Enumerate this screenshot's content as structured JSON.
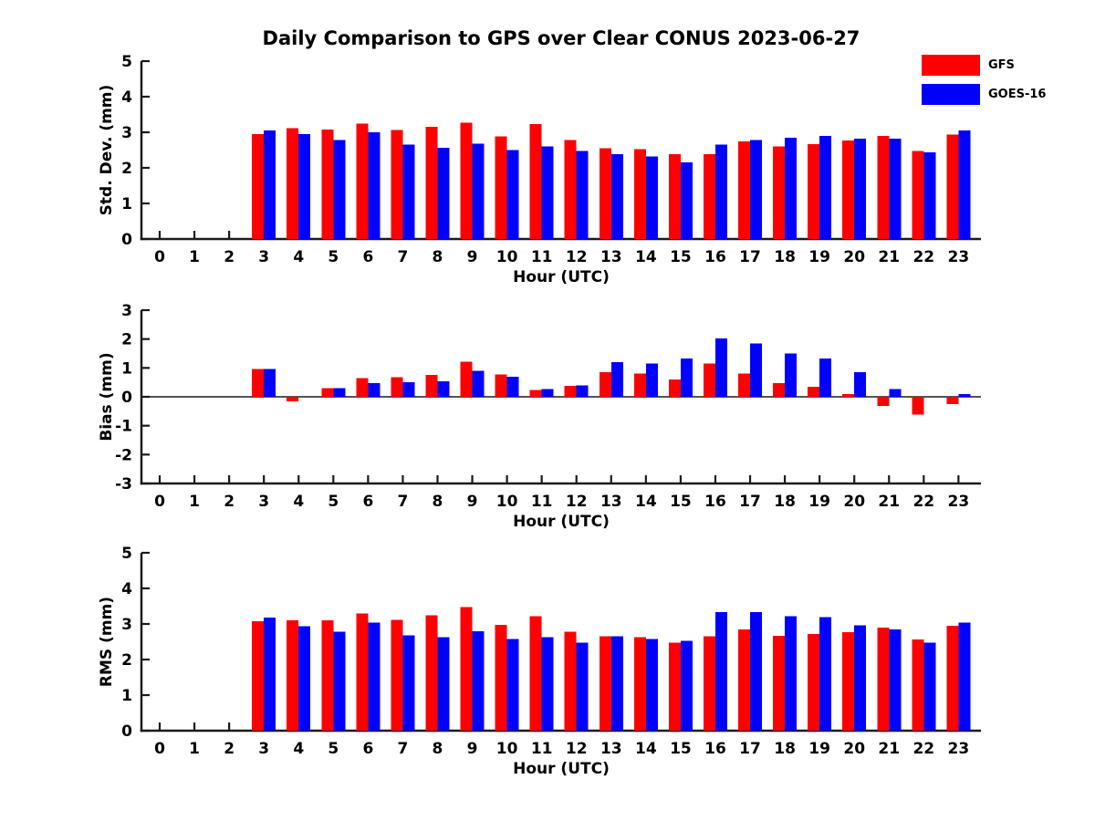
{
  "title": "Daily Comparison to GPS over Clear CONUS 2023-06-27",
  "legend": {
    "position": "top-right",
    "items": [
      {
        "label": "GFS",
        "color": "#ff0000"
      },
      {
        "label": "GOES-16",
        "color": "#0000ff"
      }
    ]
  },
  "chart_data": [
    {
      "type": "bar",
      "title": "Daily Comparison to GPS over Clear CONUS 2023-06-27",
      "xlabel": "Hour (UTC)",
      "ylabel": "Std. Dev. (mm)",
      "ylim": [
        0,
        5
      ],
      "yticks": [
        0,
        1,
        2,
        3,
        4,
        5
      ],
      "grid": false,
      "categories": [
        "0",
        "1",
        "2",
        "3",
        "4",
        "5",
        "6",
        "7",
        "8",
        "9",
        "10",
        "11",
        "12",
        "13",
        "14",
        "15",
        "16",
        "17",
        "18",
        "19",
        "20",
        "21",
        "22",
        "23"
      ],
      "series": [
        {
          "name": "GFS",
          "color": "#ff0000",
          "values": [
            null,
            null,
            null,
            2.95,
            3.12,
            3.08,
            3.24,
            3.06,
            3.16,
            3.27,
            2.88,
            3.23,
            2.78,
            2.55,
            2.52,
            2.38,
            2.38,
            2.75,
            2.6,
            2.67,
            2.77,
            2.9,
            2.48,
            2.93
          ]
        },
        {
          "name": "GOES-16",
          "color": "#0000ff",
          "values": [
            null,
            null,
            null,
            3.05,
            2.95,
            2.78,
            3.0,
            2.65,
            2.57,
            2.68,
            2.5,
            2.6,
            2.47,
            2.38,
            2.32,
            2.15,
            2.65,
            2.78,
            2.85,
            2.9,
            2.82,
            2.82,
            2.44,
            3.05
          ]
        }
      ]
    },
    {
      "type": "bar",
      "title": "",
      "xlabel": "Hour (UTC)",
      "ylabel": "Bias (mm)",
      "ylim": [
        -3,
        3
      ],
      "yticks": [
        -3,
        -2,
        -1,
        0,
        1,
        2,
        3
      ],
      "zero_line": true,
      "grid": false,
      "categories": [
        "0",
        "1",
        "2",
        "3",
        "4",
        "5",
        "6",
        "7",
        "8",
        "9",
        "10",
        "11",
        "12",
        "13",
        "14",
        "15",
        "16",
        "17",
        "18",
        "19",
        "20",
        "21",
        "22",
        "23"
      ],
      "series": [
        {
          "name": "GFS",
          "color": "#ff0000",
          "values": [
            null,
            null,
            null,
            0.97,
            -0.15,
            0.3,
            0.65,
            0.68,
            0.76,
            1.22,
            0.78,
            0.23,
            0.38,
            0.86,
            0.81,
            0.6,
            1.15,
            0.8,
            0.47,
            0.35,
            0.1,
            -0.32,
            -0.62,
            -0.25
          ]
        },
        {
          "name": "GOES-16",
          "color": "#0000ff",
          "values": [
            null,
            null,
            null,
            0.97,
            0,
            0.3,
            0.48,
            0.5,
            0.53,
            0.9,
            0.7,
            0.27,
            0.4,
            1.2,
            1.16,
            1.32,
            2.02,
            1.85,
            1.5,
            1.32,
            0.85,
            0.27,
            0,
            0.1
          ]
        }
      ]
    },
    {
      "type": "bar",
      "title": "",
      "xlabel": "Hour (UTC)",
      "ylabel": "RMS (mm)",
      "ylim": [
        0,
        5
      ],
      "yticks": [
        0,
        1,
        2,
        3,
        4,
        5
      ],
      "grid": false,
      "categories": [
        "0",
        "1",
        "2",
        "3",
        "4",
        "5",
        "6",
        "7",
        "8",
        "9",
        "10",
        "11",
        "12",
        "13",
        "14",
        "15",
        "16",
        "17",
        "18",
        "19",
        "20",
        "21",
        "22",
        "23"
      ],
      "series": [
        {
          "name": "GFS",
          "color": "#ff0000",
          "values": [
            null,
            null,
            null,
            3.08,
            3.1,
            3.1,
            3.3,
            3.12,
            3.25,
            3.47,
            2.97,
            3.22,
            2.78,
            2.65,
            2.63,
            2.48,
            2.65,
            2.85,
            2.67,
            2.72,
            2.77,
            2.9,
            2.56,
            2.95
          ]
        },
        {
          "name": "GOES-16",
          "color": "#0000ff",
          "values": [
            null,
            null,
            null,
            3.18,
            2.94,
            2.78,
            3.04,
            2.68,
            2.63,
            2.8,
            2.58,
            2.63,
            2.47,
            2.66,
            2.58,
            2.53,
            3.33,
            3.33,
            3.22,
            3.19,
            2.96,
            2.85,
            2.48,
            3.04
          ]
        }
      ]
    }
  ]
}
